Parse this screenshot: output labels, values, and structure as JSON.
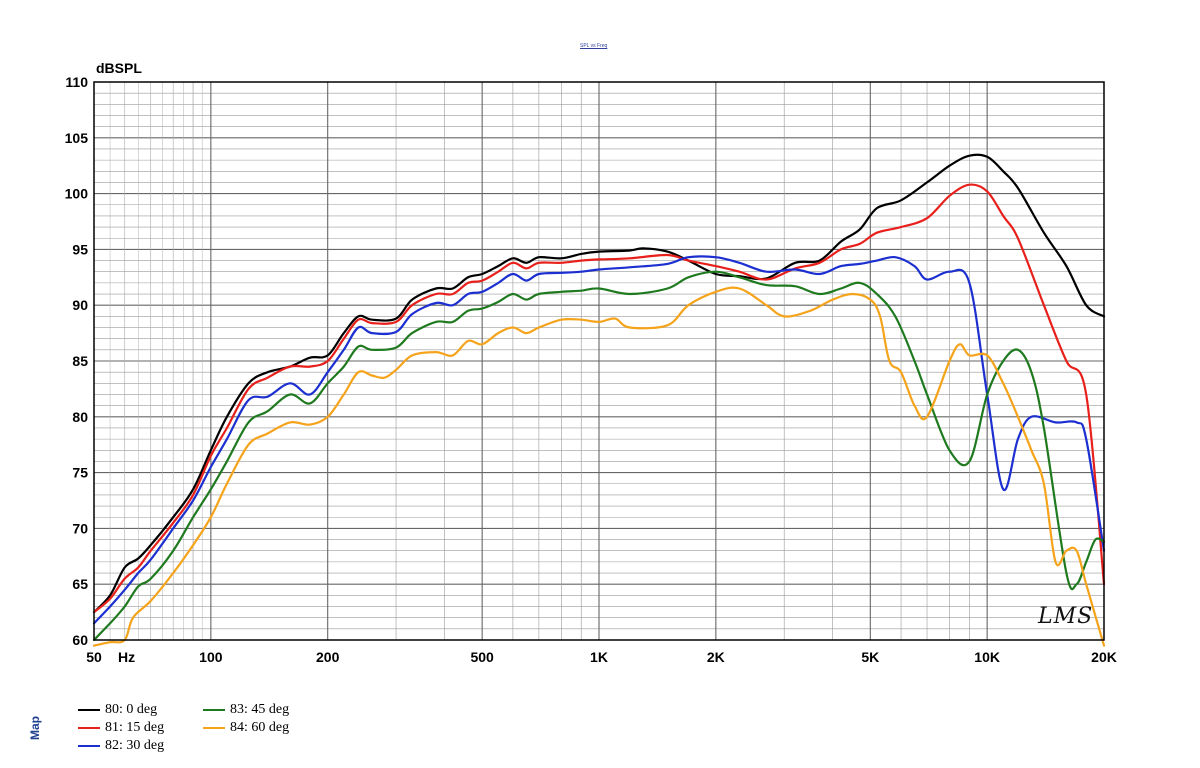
{
  "header": {
    "small_title": "SPL vs Freq",
    "side_label": "Map",
    "watermark": "LMS"
  },
  "colors": {
    "s80": "#000000",
    "s81": "#e8201c",
    "s82": "#1c2fd0",
    "s83": "#1f7a1f",
    "s84": "#f5a31b"
  },
  "chart_data": {
    "type": "line",
    "ylabel": "dBSPL",
    "xlabel": "Hz",
    "xscale": "log",
    "xlim": [
      50,
      20000
    ],
    "ylim": [
      60,
      110
    ],
    "grid": true,
    "legend_position": "bottom-left",
    "x_ticks": [
      50,
      100,
      200,
      500,
      1000,
      2000,
      5000,
      10000,
      20000
    ],
    "x_tick_labels": [
      "50",
      "100",
      "200",
      "500",
      "1K",
      "2K",
      "5K",
      "10K",
      "20K"
    ],
    "y_ticks": [
      60,
      65,
      70,
      75,
      80,
      85,
      90,
      95,
      100,
      105,
      110
    ],
    "y_tick_labels": [
      "60",
      "65",
      "70",
      "75",
      "80",
      "85",
      "90",
      "95",
      "100",
      "105",
      "110"
    ],
    "series": [
      {
        "name": "80: 0 deg",
        "color": "#000000",
        "points": [
          [
            50,
            62.5
          ],
          [
            55,
            64
          ],
          [
            60,
            66.5
          ],
          [
            65,
            67.3
          ],
          [
            70,
            68.5
          ],
          [
            80,
            71
          ],
          [
            90,
            73.5
          ],
          [
            100,
            77
          ],
          [
            110,
            80
          ],
          [
            125,
            83
          ],
          [
            140,
            84
          ],
          [
            160,
            84.5
          ],
          [
            180,
            85.3
          ],
          [
            200,
            85.5
          ],
          [
            220,
            87.5
          ],
          [
            240,
            89
          ],
          [
            260,
            88.7
          ],
          [
            300,
            88.8
          ],
          [
            330,
            90.5
          ],
          [
            380,
            91.5
          ],
          [
            420,
            91.5
          ],
          [
            460,
            92.5
          ],
          [
            500,
            92.8
          ],
          [
            550,
            93.5
          ],
          [
            600,
            94.2
          ],
          [
            650,
            93.8
          ],
          [
            700,
            94.3
          ],
          [
            800,
            94.2
          ],
          [
            900,
            94.6
          ],
          [
            1000,
            94.8
          ],
          [
            1200,
            94.9
          ],
          [
            1300,
            95.1
          ],
          [
            1500,
            94.8
          ],
          [
            1700,
            94
          ],
          [
            2000,
            92.8
          ],
          [
            2300,
            92.6
          ],
          [
            2700,
            92.4
          ],
          [
            3200,
            93.8
          ],
          [
            3700,
            94
          ],
          [
            4200,
            95.7
          ],
          [
            4700,
            96.8
          ],
          [
            5200,
            98.7
          ],
          [
            6000,
            99.4
          ],
          [
            7000,
            101
          ],
          [
            8000,
            102.5
          ],
          [
            9000,
            103.4
          ],
          [
            10000,
            103.3
          ],
          [
            11000,
            102
          ],
          [
            12000,
            100.5
          ],
          [
            14000,
            96.5
          ],
          [
            16000,
            93.5
          ],
          [
            18000,
            90
          ],
          [
            20000,
            89
          ]
        ]
      },
      {
        "name": "81: 15 deg",
        "color": "#e8201c",
        "points": [
          [
            50,
            62.5
          ],
          [
            55,
            63.7
          ],
          [
            60,
            65.5
          ],
          [
            65,
            66.5
          ],
          [
            70,
            68
          ],
          [
            80,
            70.5
          ],
          [
            90,
            73
          ],
          [
            100,
            76.5
          ],
          [
            110,
            79
          ],
          [
            125,
            82.5
          ],
          [
            140,
            83.5
          ],
          [
            160,
            84.5
          ],
          [
            180,
            84.5
          ],
          [
            200,
            85
          ],
          [
            220,
            87
          ],
          [
            240,
            88.7
          ],
          [
            260,
            88.4
          ],
          [
            300,
            88.5
          ],
          [
            330,
            90
          ],
          [
            380,
            91
          ],
          [
            420,
            91
          ],
          [
            460,
            92
          ],
          [
            500,
            92.2
          ],
          [
            550,
            93
          ],
          [
            600,
            93.8
          ],
          [
            650,
            93.3
          ],
          [
            700,
            93.8
          ],
          [
            800,
            93.8
          ],
          [
            900,
            94
          ],
          [
            1000,
            94.1
          ],
          [
            1200,
            94.2
          ],
          [
            1500,
            94.5
          ],
          [
            1700,
            94
          ],
          [
            2000,
            93.5
          ],
          [
            2300,
            93
          ],
          [
            2700,
            92.3
          ],
          [
            3200,
            93.3
          ],
          [
            3700,
            93.8
          ],
          [
            4200,
            95
          ],
          [
            4700,
            95.5
          ],
          [
            5200,
            96.5
          ],
          [
            6000,
            97
          ],
          [
            7000,
            97.8
          ],
          [
            8000,
            99.8
          ],
          [
            9000,
            100.8
          ],
          [
            10000,
            100.2
          ],
          [
            11000,
            98
          ],
          [
            12000,
            96
          ],
          [
            14000,
            90
          ],
          [
            16000,
            85
          ],
          [
            18000,
            82
          ],
          [
            20000,
            65
          ]
        ]
      },
      {
        "name": "82: 30 deg",
        "color": "#1c2fd0",
        "points": [
          [
            50,
            61.5
          ],
          [
            55,
            63
          ],
          [
            60,
            64.5
          ],
          [
            65,
            66
          ],
          [
            70,
            67.2
          ],
          [
            80,
            70
          ],
          [
            90,
            72.5
          ],
          [
            100,
            75.5
          ],
          [
            110,
            78
          ],
          [
            125,
            81.5
          ],
          [
            140,
            81.8
          ],
          [
            160,
            83
          ],
          [
            180,
            82
          ],
          [
            200,
            84
          ],
          [
            220,
            86
          ],
          [
            240,
            88
          ],
          [
            260,
            87.5
          ],
          [
            300,
            87.6
          ],
          [
            330,
            89.2
          ],
          [
            380,
            90.2
          ],
          [
            420,
            90
          ],
          [
            460,
            91
          ],
          [
            500,
            91.2
          ],
          [
            550,
            92
          ],
          [
            600,
            92.8
          ],
          [
            650,
            92.2
          ],
          [
            700,
            92.8
          ],
          [
            800,
            92.9
          ],
          [
            900,
            93
          ],
          [
            1000,
            93.2
          ],
          [
            1200,
            93.4
          ],
          [
            1500,
            93.7
          ],
          [
            1700,
            94.3
          ],
          [
            2000,
            94.3
          ],
          [
            2300,
            93.8
          ],
          [
            2700,
            93
          ],
          [
            3200,
            93.2
          ],
          [
            3700,
            92.8
          ],
          [
            4200,
            93.5
          ],
          [
            4700,
            93.7
          ],
          [
            5200,
            94
          ],
          [
            5800,
            94.3
          ],
          [
            6500,
            93.5
          ],
          [
            7000,
            92.3
          ],
          [
            8000,
            93
          ],
          [
            9000,
            92
          ],
          [
            10000,
            82
          ],
          [
            11000,
            73.5
          ],
          [
            12000,
            78
          ],
          [
            13000,
            80
          ],
          [
            15000,
            79.5
          ],
          [
            17000,
            79.5
          ],
          [
            18000,
            78
          ],
          [
            20000,
            68
          ]
        ]
      },
      {
        "name": "83: 45 deg",
        "color": "#1f7a1f",
        "points": [
          [
            50,
            60
          ],
          [
            55,
            61.5
          ],
          [
            60,
            63
          ],
          [
            65,
            64.8
          ],
          [
            70,
            65.5
          ],
          [
            80,
            68
          ],
          [
            90,
            71
          ],
          [
            100,
            73.5
          ],
          [
            110,
            76
          ],
          [
            125,
            79.5
          ],
          [
            140,
            80.5
          ],
          [
            160,
            82
          ],
          [
            180,
            81.2
          ],
          [
            200,
            83
          ],
          [
            220,
            84.5
          ],
          [
            240,
            86.3
          ],
          [
            260,
            86
          ],
          [
            300,
            86.2
          ],
          [
            330,
            87.5
          ],
          [
            380,
            88.5
          ],
          [
            420,
            88.5
          ],
          [
            460,
            89.5
          ],
          [
            500,
            89.7
          ],
          [
            550,
            90.3
          ],
          [
            600,
            91
          ],
          [
            650,
            90.5
          ],
          [
            700,
            91
          ],
          [
            800,
            91.2
          ],
          [
            900,
            91.3
          ],
          [
            1000,
            91.5
          ],
          [
            1200,
            91
          ],
          [
            1500,
            91.5
          ],
          [
            1700,
            92.5
          ],
          [
            2000,
            93
          ],
          [
            2300,
            92.5
          ],
          [
            2700,
            91.8
          ],
          [
            3200,
            91.7
          ],
          [
            3700,
            91
          ],
          [
            4200,
            91.5
          ],
          [
            4700,
            92
          ],
          [
            5200,
            91
          ],
          [
            5800,
            89
          ],
          [
            6500,
            85
          ],
          [
            7000,
            82
          ],
          [
            8000,
            77
          ],
          [
            9000,
            76
          ],
          [
            10000,
            82
          ],
          [
            11000,
            85
          ],
          [
            12000,
            86
          ],
          [
            13000,
            84
          ],
          [
            14000,
            79
          ],
          [
            16000,
            66
          ],
          [
            17000,
            65
          ],
          [
            18000,
            67
          ],
          [
            19000,
            69
          ],
          [
            20000,
            68.8
          ]
        ]
      },
      {
        "name": "84: 60 deg",
        "color": "#f5a31b",
        "points": [
          [
            50,
            59.5
          ],
          [
            55,
            59.8
          ],
          [
            60,
            60
          ],
          [
            63,
            62
          ],
          [
            70,
            63.5
          ],
          [
            80,
            66
          ],
          [
            90,
            68.5
          ],
          [
            100,
            71
          ],
          [
            110,
            74
          ],
          [
            125,
            77.5
          ],
          [
            140,
            78.5
          ],
          [
            160,
            79.5
          ],
          [
            180,
            79.3
          ],
          [
            200,
            80
          ],
          [
            220,
            82
          ],
          [
            240,
            84
          ],
          [
            260,
            83.7
          ],
          [
            280,
            83.5
          ],
          [
            300,
            84.2
          ],
          [
            330,
            85.5
          ],
          [
            380,
            85.8
          ],
          [
            420,
            85.5
          ],
          [
            460,
            86.8
          ],
          [
            500,
            86.5
          ],
          [
            550,
            87.5
          ],
          [
            600,
            88
          ],
          [
            650,
            87.5
          ],
          [
            700,
            88
          ],
          [
            800,
            88.7
          ],
          [
            900,
            88.7
          ],
          [
            1000,
            88.5
          ],
          [
            1100,
            88.8
          ],
          [
            1200,
            88
          ],
          [
            1500,
            88.2
          ],
          [
            1700,
            90
          ],
          [
            2000,
            91.2
          ],
          [
            2300,
            91.5
          ],
          [
            2700,
            90
          ],
          [
            3000,
            89
          ],
          [
            3500,
            89.5
          ],
          [
            4000,
            90.5
          ],
          [
            4500,
            91
          ],
          [
            5000,
            90.5
          ],
          [
            5300,
            89
          ],
          [
            5600,
            85
          ],
          [
            6000,
            84
          ],
          [
            6500,
            81
          ],
          [
            7000,
            80
          ],
          [
            8000,
            85
          ],
          [
            8500,
            86.5
          ],
          [
            9000,
            85.5
          ],
          [
            10000,
            85.5
          ],
          [
            11000,
            83
          ],
          [
            12000,
            80
          ],
          [
            13000,
            77
          ],
          [
            14000,
            74
          ],
          [
            15000,
            67
          ],
          [
            16000,
            68
          ],
          [
            17000,
            68
          ],
          [
            18000,
            65
          ],
          [
            20000,
            59.5
          ]
        ]
      }
    ]
  }
}
